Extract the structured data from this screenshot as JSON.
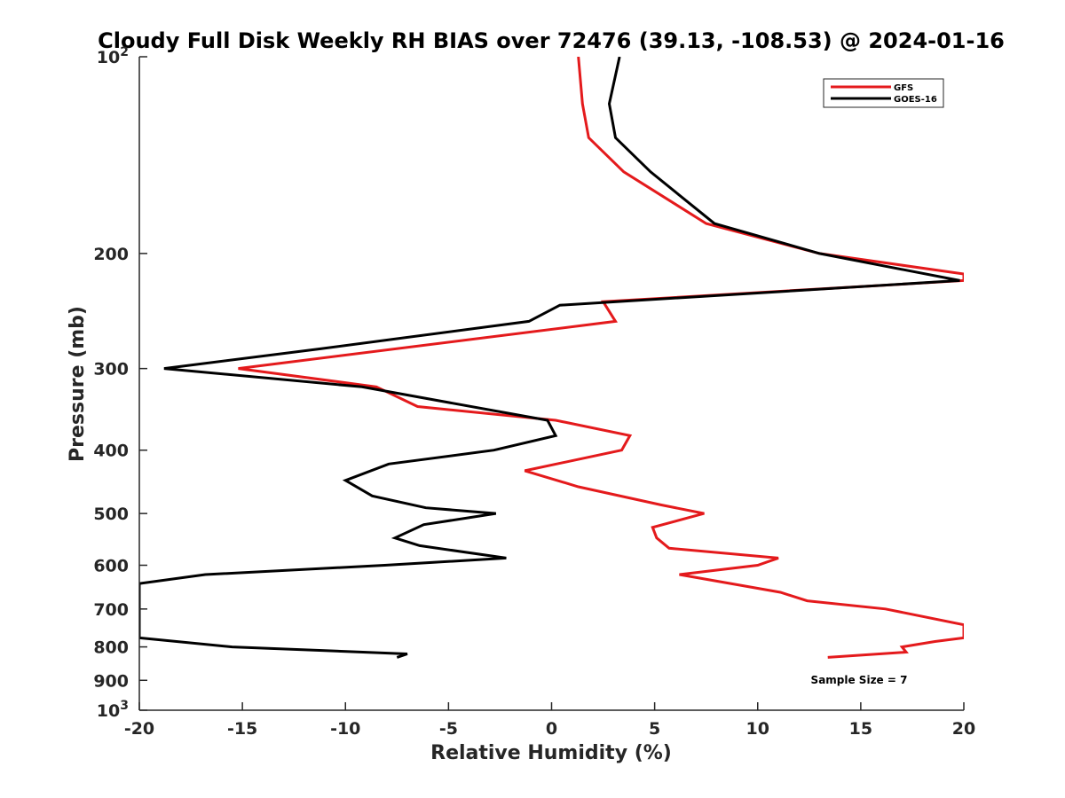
{
  "chart_data": {
    "type": "line",
    "title": "Cloudy Full Disk Weekly RH BIAS over 72476 (39.13, -108.53) @ 2024-01-16",
    "xlabel": "Relative Humidity (%)",
    "ylabel": "Pressure (mb)",
    "xlim": [
      -20,
      20
    ],
    "ylim": [
      100,
      1000
    ],
    "y_scale": "log",
    "y_reversed": true,
    "grid": false,
    "legend_position": "top-right",
    "x_ticks": [
      "-20",
      "-15",
      "-10",
      "-5",
      "0",
      "5",
      "10",
      "15",
      "20"
    ],
    "y_ticks": [
      {
        "value": 100,
        "base": "10",
        "exp": "2"
      },
      {
        "value": 200,
        "label": "200"
      },
      {
        "value": 300,
        "label": "300"
      },
      {
        "value": 400,
        "label": "400"
      },
      {
        "value": 500,
        "label": "500"
      },
      {
        "value": 600,
        "label": "600"
      },
      {
        "value": 700,
        "label": "700"
      },
      {
        "value": 800,
        "label": "800"
      },
      {
        "value": 900,
        "label": "900"
      },
      {
        "value": 1000,
        "base": "10",
        "exp": "3"
      }
    ],
    "annotation": "Sample Size = 7",
    "series": [
      {
        "name": "GFS",
        "color": "#e41a1c",
        "points": [
          [
            1.3,
            100
          ],
          [
            1.5,
            118
          ],
          [
            1.8,
            133
          ],
          [
            3.5,
            150
          ],
          [
            7.5,
            180
          ],
          [
            13,
            200
          ],
          [
            20,
            215
          ],
          [
            20,
            220
          ],
          [
            2.5,
            237
          ],
          [
            3.1,
            254
          ],
          [
            -15.2,
            300
          ],
          [
            -8.5,
            320
          ],
          [
            -6.5,
            343
          ],
          [
            0.2,
            360
          ],
          [
            3.8,
            380
          ],
          [
            3.4,
            400
          ],
          [
            -1.3,
            430
          ],
          [
            1.3,
            455
          ],
          [
            5.3,
            485
          ],
          [
            7.4,
            500
          ],
          [
            4.9,
            525
          ],
          [
            5.1,
            545
          ],
          [
            5.7,
            565
          ],
          [
            11,
            585
          ],
          [
            10,
            600
          ],
          [
            6.2,
            620
          ],
          [
            11.1,
            660
          ],
          [
            12.4,
            680
          ],
          [
            16.2,
            700
          ],
          [
            20,
            740
          ],
          [
            20,
            775
          ],
          [
            18.6,
            785
          ],
          [
            17,
            800
          ],
          [
            17.2,
            815
          ],
          [
            13.4,
            830
          ]
        ]
      },
      {
        "name": "GOES-16",
        "color": "#000000",
        "points": [
          [
            3.3,
            100
          ],
          [
            2.8,
            118
          ],
          [
            3.1,
            133
          ],
          [
            4.8,
            150
          ],
          [
            7.9,
            180
          ],
          [
            13,
            200
          ],
          [
            19.8,
            220
          ],
          [
            0.4,
            240
          ],
          [
            -1.1,
            254
          ],
          [
            -11.3,
            280
          ],
          [
            -18.8,
            300
          ],
          [
            -9.2,
            320
          ],
          [
            -0.2,
            360
          ],
          [
            0.2,
            380
          ],
          [
            -2.8,
            400
          ],
          [
            -7.9,
            420
          ],
          [
            -10,
            445
          ],
          [
            -8.7,
            470
          ],
          [
            -6.1,
            490
          ],
          [
            -2.7,
            500
          ],
          [
            -6.2,
            520
          ],
          [
            -7.6,
            545
          ],
          [
            -6.4,
            560
          ],
          [
            -2.2,
            585
          ],
          [
            -8.1,
            600
          ],
          [
            -16.8,
            620
          ],
          [
            -20,
            640
          ],
          [
            -20,
            775
          ],
          [
            -15.5,
            800
          ],
          [
            -7,
            820
          ],
          [
            -7.5,
            830
          ]
        ]
      }
    ]
  }
}
